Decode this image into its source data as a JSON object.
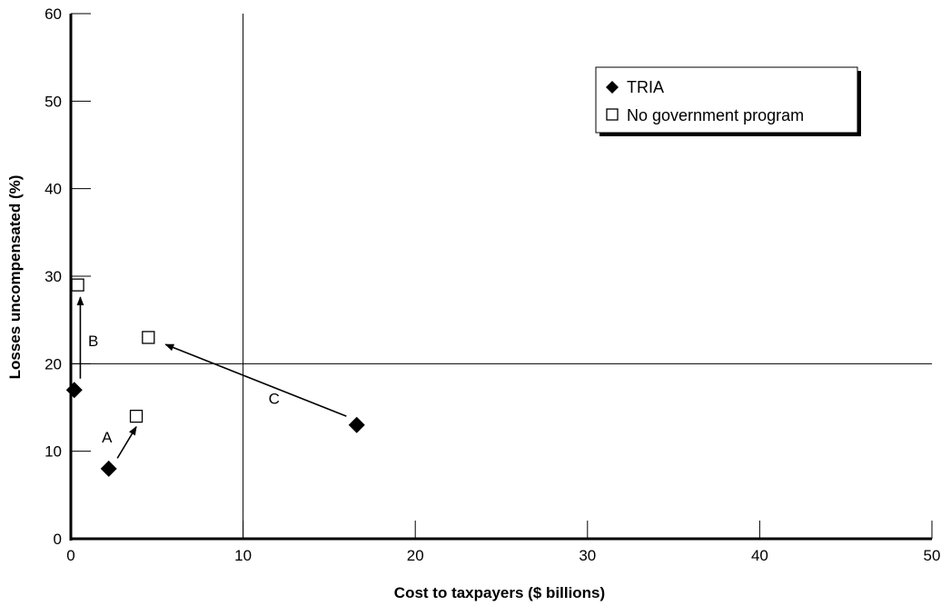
{
  "chart_data": {
    "type": "scatter",
    "xlabel": "Cost to taxpayers ($ billions)",
    "ylabel": "Losses uncompensated (%)",
    "xlim": [
      0,
      50
    ],
    "ylim": [
      0,
      60
    ],
    "xticks": [
      0,
      10,
      20,
      30,
      40,
      50
    ],
    "yticks": [
      0,
      10,
      20,
      30,
      40,
      50,
      60
    ],
    "reference_lines": {
      "x": 10,
      "y": 20
    },
    "grid": false,
    "legend_position": "top-right",
    "series": [
      {
        "name": "TRIA",
        "marker": "filled-diamond",
        "points": [
          {
            "label": "A",
            "x": 2.2,
            "y": 8
          },
          {
            "label": "B",
            "x": 0.2,
            "y": 17
          },
          {
            "label": "C",
            "x": 16.6,
            "y": 13
          }
        ]
      },
      {
        "name": "No government program",
        "marker": "open-square",
        "points": [
          {
            "label": "A",
            "x": 3.8,
            "y": 14
          },
          {
            "label": "B",
            "x": 0.4,
            "y": 29
          },
          {
            "label": "C",
            "x": 4.5,
            "y": 23
          }
        ]
      }
    ],
    "annotations": [
      {
        "text": "A",
        "x": 2.1,
        "y": 11
      },
      {
        "text": "B",
        "x": 1.3,
        "y": 22
      },
      {
        "text": "C",
        "x": 11.8,
        "y": 15.4
      }
    ],
    "arrows": [
      {
        "from": [
          2.7,
          9.2
        ],
        "to": [
          3.8,
          12.8
        ]
      },
      {
        "from": [
          0.55,
          18.3
        ],
        "to": [
          0.55,
          27.6
        ]
      },
      {
        "from": [
          16.0,
          14.0
        ],
        "to": [
          5.5,
          22.2
        ]
      }
    ]
  }
}
